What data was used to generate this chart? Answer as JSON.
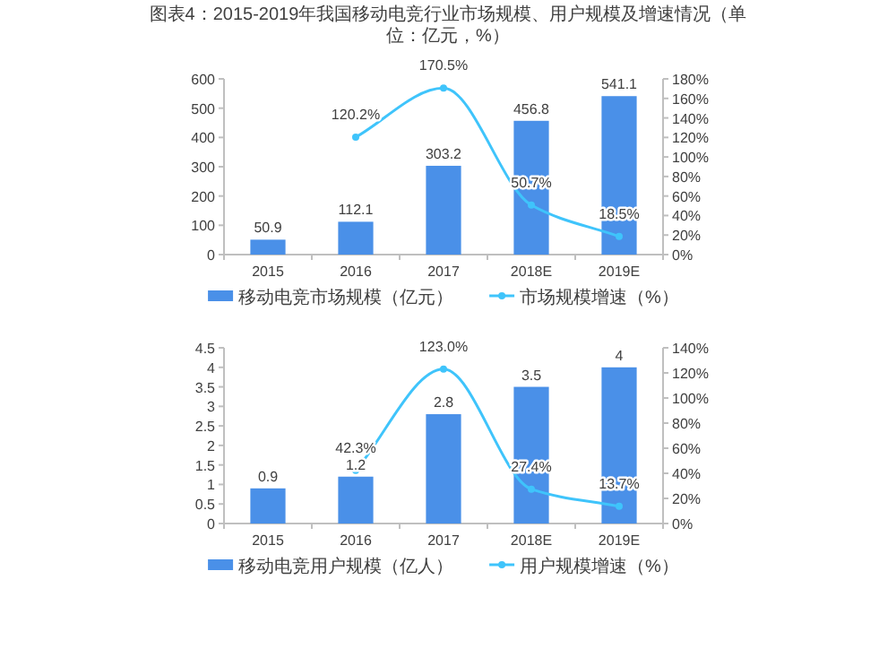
{
  "chart_data": [
    {
      "type": "bar",
      "title": "图表4：2015-2019年我国移动电竞行业市场规模、用户规模及增速情况（单位：亿元，%）",
      "categories": [
        "2015",
        "2016",
        "2017",
        "2018E",
        "2019E"
      ],
      "ylim": [
        0,
        600
      ],
      "yticks": [
        0,
        100,
        200,
        300,
        400,
        500,
        600
      ],
      "y2lim": [
        0,
        180
      ],
      "y2ticks": [
        {
          "value": 0,
          "label": "0%"
        },
        {
          "value": 20,
          "label": "20%"
        },
        {
          "value": 40,
          "label": "40%"
        },
        {
          "value": 60,
          "label": "60%"
        },
        {
          "value": 80,
          "label": "80%"
        },
        {
          "value": 100,
          "label": "100%"
        },
        {
          "value": 120,
          "label": "120%"
        },
        {
          "value": 140,
          "label": "140%"
        },
        {
          "value": 160,
          "label": "160%"
        },
        {
          "value": 180,
          "label": "180%"
        }
      ],
      "legend": "bottom",
      "marker": "circle",
      "series": [
        {
          "name": "移动电竞市场规模（亿元）",
          "color": "#4a90e8",
          "values": [
            50.9,
            112.1,
            303.2,
            456.8,
            541.1
          ],
          "value_labels": [
            "50.9",
            "112.1",
            "303.2",
            "456.8",
            "541.1"
          ]
        },
        {
          "name": "市场规模增速（%）",
          "type": "line",
          "axis": "y2",
          "color": "#3fc4fb",
          "values": [
            null,
            120.2,
            170.5,
            50.7,
            18.5
          ],
          "value_labels": [
            null,
            "120.2%",
            "170.5%",
            "50.7%",
            "18.5%"
          ]
        }
      ]
    },
    {
      "type": "bar",
      "categories": [
        "2015",
        "2016",
        "2017",
        "2018E",
        "2019E"
      ],
      "ylim": [
        0,
        4.5
      ],
      "yticks": [
        0,
        0.5,
        1,
        1.5,
        2,
        2.5,
        3,
        3.5,
        4,
        4.5
      ],
      "y2lim": [
        0,
        140
      ],
      "y2ticks": [
        {
          "value": 0,
          "label": "0%"
        },
        {
          "value": 20,
          "label": "20%"
        },
        {
          "value": 40,
          "label": "40%"
        },
        {
          "value": 60,
          "label": "60%"
        },
        {
          "value": 80,
          "label": "80%"
        },
        {
          "value": 100,
          "label": "100%"
        },
        {
          "value": 120,
          "label": "120%"
        },
        {
          "value": 140,
          "label": "140%"
        }
      ],
      "legend": "bottom",
      "marker": "circle",
      "series": [
        {
          "name": "移动电竞用户规模（亿人）",
          "color": "#4a90e8",
          "values": [
            0.9,
            1.2,
            2.8,
            3.5,
            4
          ],
          "value_labels": [
            "0.9",
            "1.2",
            "2.8",
            "3.5",
            "4"
          ]
        },
        {
          "name": "用户规模增速（%）",
          "type": "line",
          "axis": "y2",
          "color": "#3fc4fb",
          "values": [
            null,
            42.3,
            123.0,
            27.4,
            13.7
          ],
          "value_labels": [
            null,
            "42.3%",
            "123.0%",
            "27.4%",
            "13.7%"
          ]
        }
      ]
    }
  ]
}
